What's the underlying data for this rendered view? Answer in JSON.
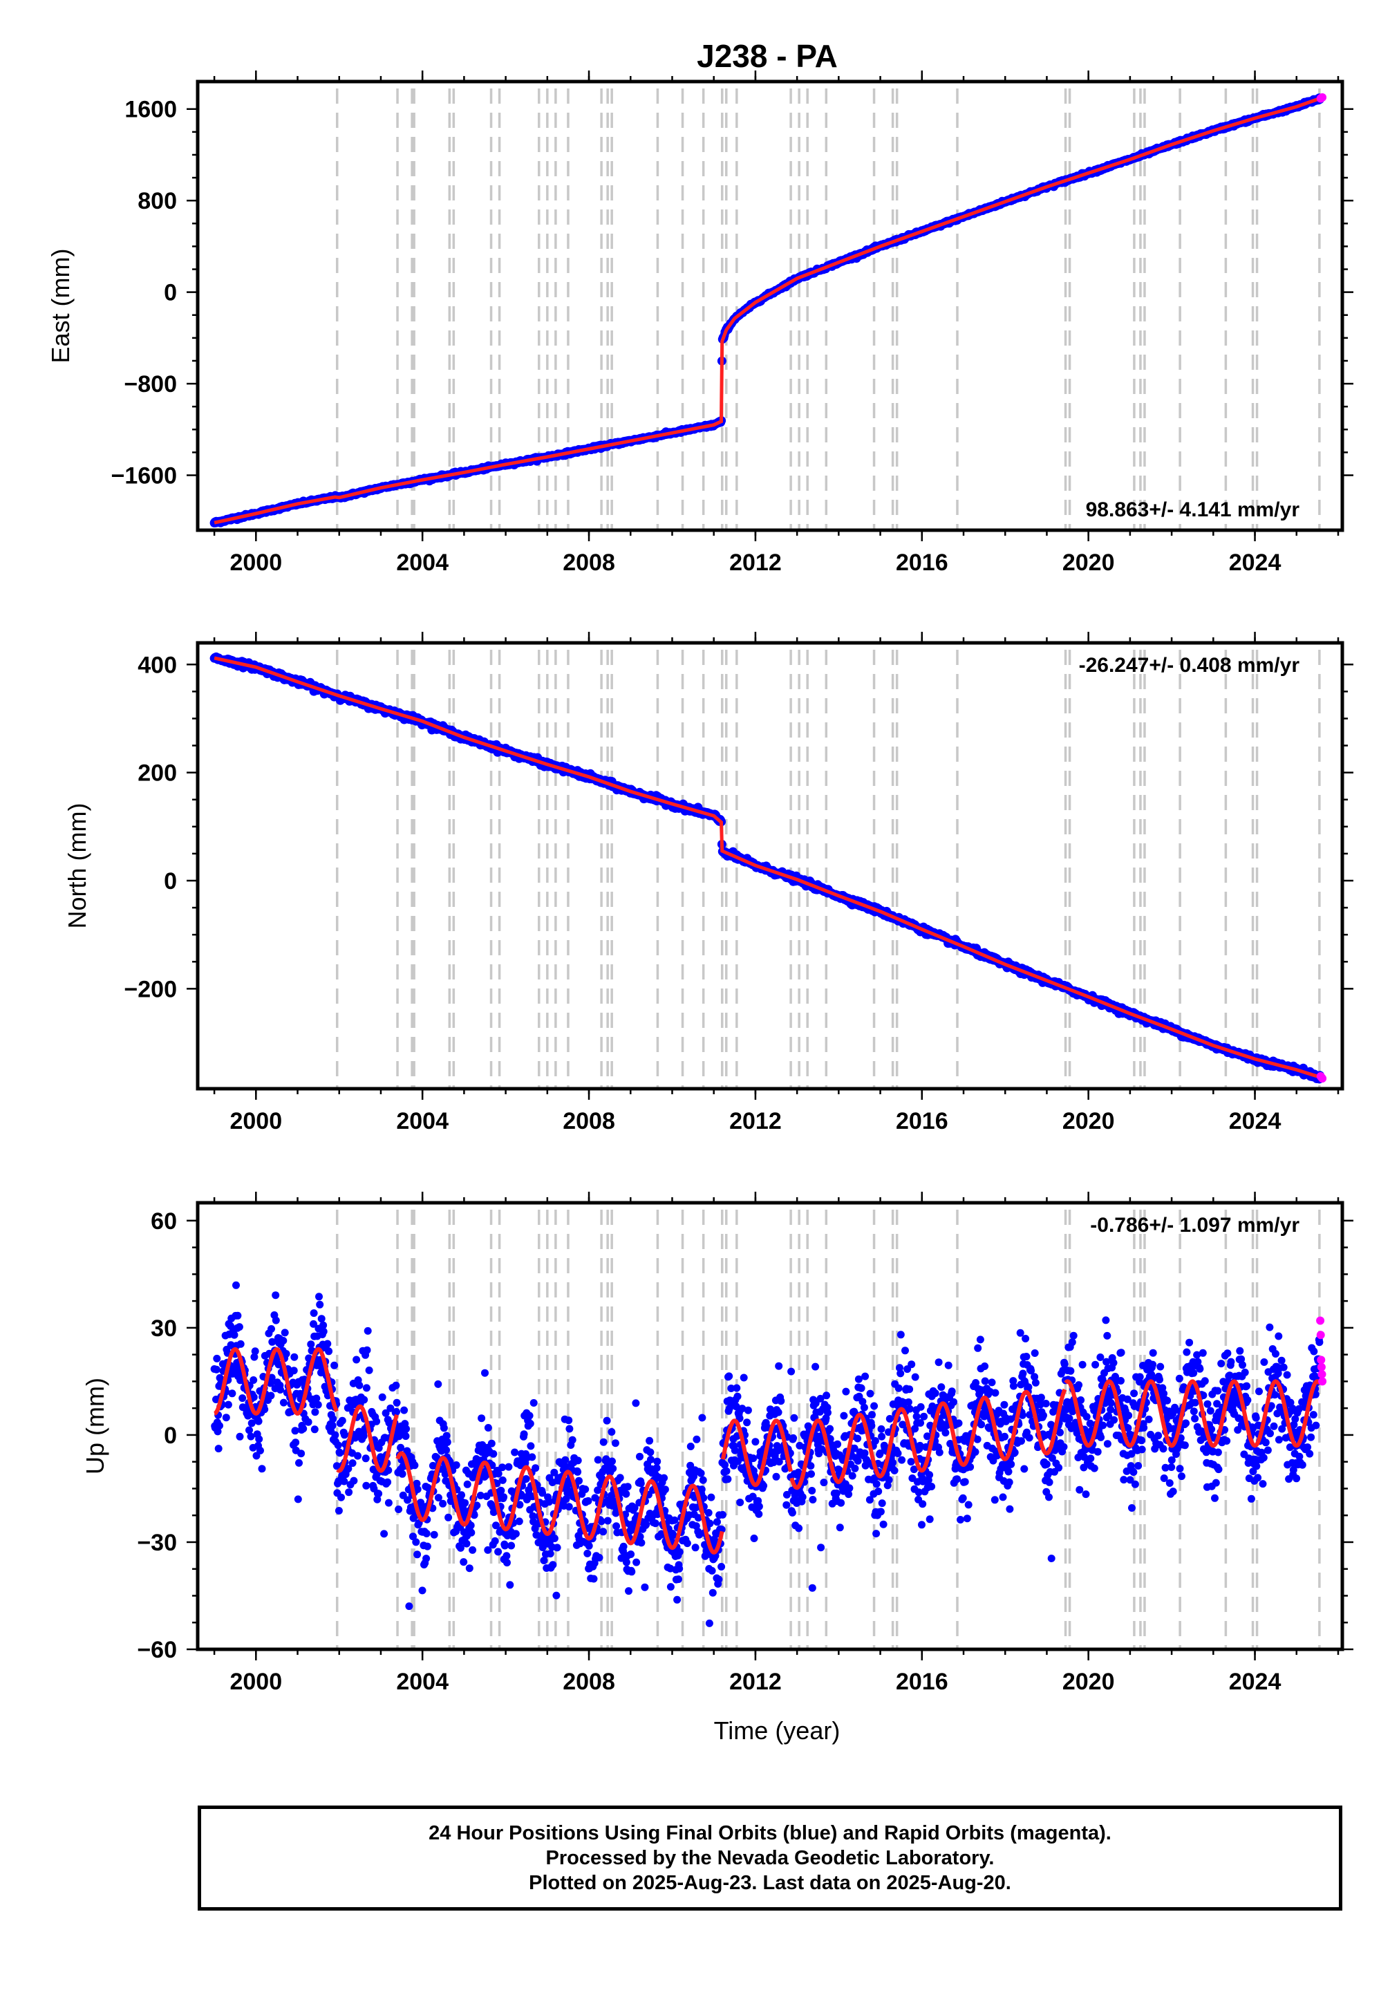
{
  "title": "J238 - PA",
  "footer": {
    "line1": "24 Hour Positions Using Final Orbits (blue) and Rapid Orbits (magenta).",
    "line2": "Processed by the Nevada Geodetic Laboratory.",
    "line3": "Plotted on 2025-Aug-23. Last data on 2025-Aug-20."
  },
  "colors": {
    "final_orbits": "#0000ff",
    "rapid_orbits": "#ff00ff",
    "model": "#ff2020",
    "events": "#c8c8c8"
  },
  "chart_data": [
    {
      "type": "scatter",
      "component": "east",
      "title": "J238 - PA",
      "xlabel": "",
      "ylabel": "East (mm)",
      "xlim": [
        1998.6,
        2026.1
      ],
      "ylim": [
        -2080,
        1840
      ],
      "xticks": [
        2000,
        2004,
        2008,
        2012,
        2016,
        2020,
        2024
      ],
      "yticks": [
        -1600,
        -800,
        0,
        800,
        1600
      ],
      "ytick_labels": [
        "−1600",
        "−800",
        "0",
        "800",
        "1600"
      ],
      "rate_label": "98.863+/- 4.141 mm/yr",
      "events": [
        2001.95,
        2003.4,
        2003.75,
        2003.8,
        2004.65,
        2004.75,
        2005.65,
        2005.85,
        2006.8,
        2007.0,
        2007.2,
        2007.5,
        2008.3,
        2008.45,
        2008.55,
        2009.65,
        2010.25,
        2010.75,
        2011.2,
        2011.3,
        2011.55,
        2012.85,
        2013.05,
        2013.25,
        2013.7,
        2014.85,
        2015.3,
        2015.4,
        2016.85,
        2019.45,
        2019.55,
        2021.1,
        2021.25,
        2021.35,
        2022.2,
        2023.3,
        2023.95,
        2024.05,
        2025.55
      ],
      "series": [
        {
          "name": "Final Orbits",
          "x": [
            1999.0,
            2000.0,
            2001.0,
            2001.9,
            2002.0,
            2003.0,
            2004.0,
            2005.0,
            2006.0,
            2007.0,
            2008.0,
            2009.0,
            2010.0,
            2011.0,
            2011.18,
            2011.2,
            2011.3,
            2011.5,
            2012.0,
            2013.0,
            2014.0,
            2015.0,
            2016.0,
            2017.0,
            2018.0,
            2019.0,
            2020.0,
            2021.0,
            2022.0,
            2023.0,
            2024.0,
            2025.0,
            2025.62
          ],
          "y": [
            -2015,
            -1935,
            -1850,
            -1790,
            -1795,
            -1710,
            -1640,
            -1575,
            -1505,
            -1440,
            -1370,
            -1300,
            -1230,
            -1160,
            -1130,
            -430,
            -330,
            -230,
            -90,
            120,
            260,
            400,
            530,
            660,
            790,
            920,
            1040,
            1160,
            1290,
            1410,
            1520,
            1620,
            1700
          ]
        },
        {
          "name": "Rapid Orbits",
          "x": [
            2025.58,
            2025.6,
            2025.62
          ],
          "y": [
            1692,
            1698,
            1702
          ]
        }
      ]
    },
    {
      "type": "scatter",
      "component": "north",
      "xlabel": "",
      "ylabel": "North (mm)",
      "xlim": [
        1998.6,
        2026.1
      ],
      "ylim": [
        -385,
        440
      ],
      "xticks": [
        2000,
        2004,
        2008,
        2012,
        2016,
        2020,
        2024
      ],
      "yticks": [
        -200,
        0,
        200,
        400
      ],
      "ytick_labels": [
        "−200",
        "0",
        "200",
        "400"
      ],
      "rate_label": "-26.247+/- 0.408 mm/yr",
      "events": [
        2001.95,
        2003.4,
        2003.75,
        2003.8,
        2004.65,
        2004.75,
        2005.65,
        2005.85,
        2006.8,
        2007.0,
        2007.2,
        2007.5,
        2008.3,
        2008.45,
        2008.55,
        2009.65,
        2010.25,
        2010.75,
        2011.2,
        2011.3,
        2011.55,
        2012.85,
        2013.05,
        2013.25,
        2013.7,
        2014.85,
        2015.3,
        2015.4,
        2016.85,
        2019.45,
        2019.55,
        2021.1,
        2021.25,
        2021.35,
        2022.2,
        2023.3,
        2023.95,
        2024.05,
        2025.55
      ],
      "series": [
        {
          "name": "Final Orbits",
          "x": [
            1999.0,
            2000.0,
            2001.0,
            2002.0,
            2003.0,
            2004.0,
            2005.0,
            2006.0,
            2007.0,
            2008.0,
            2009.0,
            2010.0,
            2011.0,
            2011.18,
            2011.2,
            2012.0,
            2013.0,
            2014.0,
            2015.0,
            2016.0,
            2017.0,
            2018.0,
            2019.0,
            2020.0,
            2021.0,
            2022.0,
            2023.0,
            2024.0,
            2025.0,
            2025.62
          ],
          "y": [
            412,
            395,
            368,
            342,
            318,
            295,
            265,
            240,
            215,
            192,
            165,
            142,
            120,
            108,
            55,
            28,
            2,
            -28,
            -57,
            -90,
            -122,
            -155,
            -185,
            -215,
            -246,
            -275,
            -305,
            -330,
            -350,
            -365
          ]
        },
        {
          "name": "Rapid Orbits",
          "x": [
            2025.58,
            2025.6,
            2025.62
          ],
          "y": [
            -362,
            -364,
            -366
          ]
        }
      ]
    },
    {
      "type": "scatter",
      "component": "up",
      "xlabel": "Time (year)",
      "ylabel": "Up (mm)",
      "xlim": [
        1998.6,
        2026.1
      ],
      "ylim": [
        -60,
        65
      ],
      "xticks": [
        2000,
        2004,
        2008,
        2012,
        2016,
        2020,
        2024
      ],
      "yticks": [
        -60,
        -30,
        0,
        30,
        60
      ],
      "ytick_labels": [
        "−60",
        "−30",
        "0",
        "30",
        "60"
      ],
      "rate_label": "-0.786+/- 1.097 mm/yr",
      "events": [
        2001.95,
        2003.4,
        2003.75,
        2003.8,
        2004.65,
        2004.75,
        2005.65,
        2005.85,
        2006.8,
        2007.0,
        2007.2,
        2007.5,
        2008.3,
        2008.45,
        2008.55,
        2009.65,
        2010.25,
        2010.75,
        2011.2,
        2011.3,
        2011.55,
        2012.85,
        2013.05,
        2013.25,
        2013.7,
        2014.85,
        2015.3,
        2015.4,
        2016.85,
        2019.45,
        2019.55,
        2021.1,
        2021.25,
        2021.35,
        2022.2,
        2023.3,
        2023.95,
        2024.05,
        2025.55
      ],
      "model_segments": [
        {
          "from": 1999.0,
          "to": 2001.95,
          "offset": 15,
          "slope": 0
        },
        {
          "from": 2001.95,
          "to": 2003.4,
          "offset": -1,
          "slope": 0
        },
        {
          "from": 2003.4,
          "to": 2011.2,
          "offset": -14,
          "slope": -1.3
        },
        {
          "from": 2011.2,
          "to": 2012.85,
          "offset": -5,
          "slope": 0
        },
        {
          "from": 2012.85,
          "to": 2019.45,
          "offset": -6,
          "slope": 1.6
        },
        {
          "from": 2019.45,
          "to": 2025.62,
          "offset": 6,
          "slope": 0
        }
      ],
      "seasonal_amplitude_mm": 9,
      "series": [
        {
          "name": "Final Orbits",
          "x": [
            1999.5,
            2000.5,
            2001.5,
            2002.5,
            2003.5,
            2004.5,
            2005.5,
            2006.5,
            2007.5,
            2008.5,
            2009.5,
            2010.5,
            2011.5,
            2012.5,
            2013.5,
            2014.5,
            2015.5,
            2016.5,
            2017.5,
            2018.5,
            2019.5,
            2020.5,
            2021.5,
            2022.5,
            2023.5,
            2024.5,
            2025.5
          ],
          "y": [
            16,
            15,
            15,
            -1,
            -14,
            -15,
            -17,
            -18,
            -20,
            -21,
            -22,
            -24,
            -5,
            -6,
            -4,
            -2,
            0,
            3,
            5,
            6,
            6,
            6,
            6,
            6,
            6,
            6,
            6
          ]
        },
        {
          "name": "Rapid Orbits",
          "x": [
            2025.57,
            2025.58,
            2025.59,
            2025.6,
            2025.61,
            2025.62
          ],
          "y": [
            32,
            28,
            21,
            19,
            17,
            15
          ]
        }
      ]
    }
  ]
}
